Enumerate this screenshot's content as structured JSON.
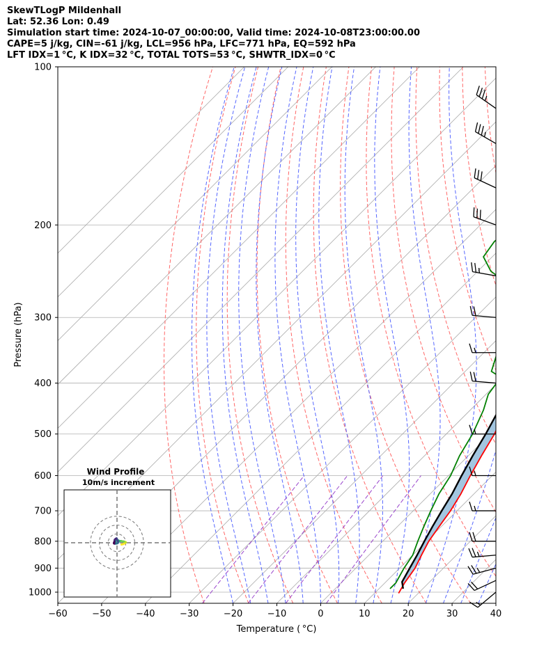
{
  "header": {
    "line1": "SkewTLogP Mildenhall",
    "line2": "Lat: 52.36   Lon: 0.49",
    "line3": "Simulation start time: 2024-10-07_00:00:00, Valid time: 2024-10-08T23:00:00.00",
    "line4": "CAPE=5 j/kg, CIN=-61 j/kg, LCL=956 hPa, LFC=771 hPa, EQ=592 hPa",
    "line5": "LFT IDX=1 °C, K IDX=32 °C, TOTAL TOTS=53 °C, SHWTR_IDX=0 °C"
  },
  "chart_data": [
    {
      "type": "line",
      "subtype": "skew-t log-p",
      "xlabel": "Temperature ( °C)",
      "ylabel": "Pressure (hPa)",
      "xlim": [
        -60,
        40
      ],
      "ylim": [
        1050,
        100
      ],
      "yscale": "log",
      "xticks": [
        -60,
        -50,
        -40,
        -30,
        -20,
        -10,
        0,
        10,
        20,
        30,
        40
      ],
      "yticks": [
        1000,
        900,
        800,
        700,
        600,
        500,
        400,
        300,
        200,
        100
      ],
      "grid": true,
      "series": [
        {
          "role": "temperature",
          "color": "#ff0000",
          "points": [
            [
              1005,
              15.5
            ],
            [
              960,
              14.5
            ],
            [
              900,
              13.5
            ],
            [
              850,
              12.0
            ],
            [
              800,
              10.5
            ],
            [
              750,
              9.5
            ],
            [
              700,
              8.5
            ],
            [
              650,
              7.0
            ],
            [
              600,
              5.0
            ],
            [
              550,
              3.0
            ],
            [
              500,
              1.0
            ],
            [
              450,
              -2.0
            ],
            [
              400,
              -5.0
            ],
            [
              350,
              -10.0
            ],
            [
              310,
              -14.5
            ],
            [
              290,
              -17.0
            ],
            [
              275,
              -15.0
            ],
            [
              255,
              -12.0
            ],
            [
              240,
              -13.5
            ],
            [
              230,
              -14.5
            ],
            [
              210,
              -17.0
            ],
            [
              200,
              -18.0
            ],
            [
              180,
              -21.0
            ],
            [
              160,
              -25.0
            ],
            [
              145,
              -29.0
            ],
            [
              130,
              -33.0
            ],
            [
              115,
              -37.0
            ],
            [
              100,
              -41.0
            ]
          ]
        },
        {
          "role": "dewpoint",
          "color": "#008000",
          "points": [
            [
              985,
              12.5
            ],
            [
              960,
              12.5
            ],
            [
              900,
              11.0
            ],
            [
              850,
              10.0
            ],
            [
              800,
              8.0
            ],
            [
              750,
              6.0
            ],
            [
              700,
              4.0
            ],
            [
              650,
              2.0
            ],
            [
              600,
              0.5
            ],
            [
              550,
              -2.0
            ],
            [
              500,
              -4.0
            ],
            [
              450,
              -7.0
            ],
            [
              420,
              -9.5
            ],
            [
              390,
              -10.5
            ],
            [
              380,
              -14.0
            ],
            [
              340,
              -18.0
            ],
            [
              320,
              -20.5
            ],
            [
              300,
              -22.0
            ],
            [
              270,
              -25.0
            ],
            [
              245,
              -37.0
            ],
            [
              230,
              -42.0
            ],
            [
              215,
              -43.0
            ],
            [
              200,
              -42.0
            ],
            [
              180,
              -40.0
            ],
            [
              160,
              -40.5
            ],
            [
              140,
              -41.5
            ],
            [
              120,
              -42.0
            ],
            [
              100,
              -42.0
            ]
          ]
        },
        {
          "role": "parcel",
          "color": "#000000",
          "points": [
            [
              985,
              15.5
            ],
            [
              956,
              13.7
            ],
            [
              900,
              12.3
            ],
            [
              850,
              11.0
            ],
            [
              800,
              9.5
            ],
            [
              750,
              8.0
            ],
            [
              700,
              6.5
            ],
            [
              650,
              5.0
            ],
            [
              600,
              3.0
            ],
            [
              550,
              1.0
            ],
            [
              500,
              -1.0
            ],
            [
              450,
              -3.5
            ],
            [
              400,
              -6.5
            ],
            [
              350,
              -10.0
            ],
            [
              300,
              -15.0
            ],
            [
              250,
              -21.0
            ],
            [
              200,
              -31.0
            ],
            [
              150,
              -46.0
            ],
            [
              120,
              -58.0
            ],
            [
              100,
              -68.0
            ]
          ]
        }
      ],
      "cape_fill_color": "#a3c6e0",
      "reference_lines": {
        "dry_adiabats_color": "#ff6666",
        "moist_adiabats_color": "#5566ff",
        "mixing_ratio_color": "#9944cc",
        "isotherm_color": "#aaaaaa"
      },
      "wind_barbs": [
        {
          "p": 1000,
          "speed_kt": 15,
          "dir_deg": 230
        },
        {
          "p": 950,
          "speed_kt": 20,
          "dir_deg": 245
        },
        {
          "p": 900,
          "speed_kt": 25,
          "dir_deg": 255
        },
        {
          "p": 850,
          "speed_kt": 25,
          "dir_deg": 265
        },
        {
          "p": 800,
          "speed_kt": 20,
          "dir_deg": 270
        },
        {
          "p": 700,
          "speed_kt": 15,
          "dir_deg": 270
        },
        {
          "p": 600,
          "speed_kt": 15,
          "dir_deg": 270
        },
        {
          "p": 500,
          "speed_kt": 15,
          "dir_deg": 270
        },
        {
          "p": 400,
          "speed_kt": 20,
          "dir_deg": 275
        },
        {
          "p": 350,
          "speed_kt": 15,
          "dir_deg": 270
        },
        {
          "p": 300,
          "speed_kt": 20,
          "dir_deg": 275
        },
        {
          "p": 250,
          "speed_kt": 25,
          "dir_deg": 280
        },
        {
          "p": 200,
          "speed_kt": 30,
          "dir_deg": 290
        },
        {
          "p": 170,
          "speed_kt": 30,
          "dir_deg": 295
        },
        {
          "p": 140,
          "speed_kt": 35,
          "dir_deg": 300
        },
        {
          "p": 120,
          "speed_kt": 35,
          "dir_deg": 305
        }
      ]
    },
    {
      "type": "scatter",
      "subtype": "hodograph",
      "title": "Wind Profile",
      "subtitle": "10m/s increment",
      "rings_ms": [
        10,
        20,
        30
      ],
      "points_uv": [
        [
          5.0,
          -2.0
        ],
        [
          7.0,
          -1.5
        ],
        [
          9.0,
          -0.5
        ],
        [
          10.0,
          0.5
        ],
        [
          9.0,
          1.0
        ],
        [
          7.5,
          1.5
        ],
        [
          6.0,
          1.5
        ],
        [
          5.0,
          2.0
        ],
        [
          3.0,
          2.0
        ],
        [
          1.5,
          2.5
        ],
        [
          0.0,
          3.0
        ],
        [
          -1.0,
          2.5
        ],
        [
          -2.0,
          1.5
        ],
        [
          -2.5,
          0.0
        ],
        [
          -1.5,
          -1.0
        ],
        [
          0.5,
          -0.5
        ],
        [
          1.5,
          0.5
        ],
        [
          1.0,
          2.0
        ],
        [
          0.0,
          4.0
        ],
        [
          -0.5,
          5.0
        ],
        [
          -1.5,
          4.5
        ],
        [
          -2.5,
          3.5
        ],
        [
          -3.0,
          1.0
        ],
        [
          -3.5,
          -0.5
        ],
        [
          -3.0,
          -1.0
        ]
      ]
    }
  ]
}
